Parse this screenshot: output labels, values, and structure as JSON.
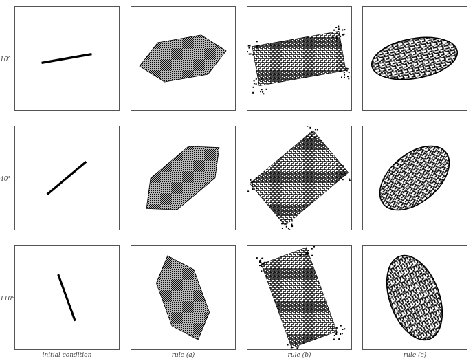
{
  "rows": [
    {
      "label": "10°",
      "angle_deg": 10
    },
    {
      "label": "40°",
      "angle_deg": 40
    },
    {
      "label": "110°",
      "angle_deg": 110
    }
  ],
  "columns": [
    {
      "label": "initial condition",
      "kind": "line"
    },
    {
      "label": "rule (a)",
      "kind": "hexagon-dense"
    },
    {
      "label": "rule (b)",
      "kind": "parallelogram-fractal"
    },
    {
      "label": "rule (c)",
      "kind": "rounded-blob"
    }
  ],
  "colors": {
    "ink": "#000000",
    "border": "#555555",
    "background": "#ffffff"
  }
}
